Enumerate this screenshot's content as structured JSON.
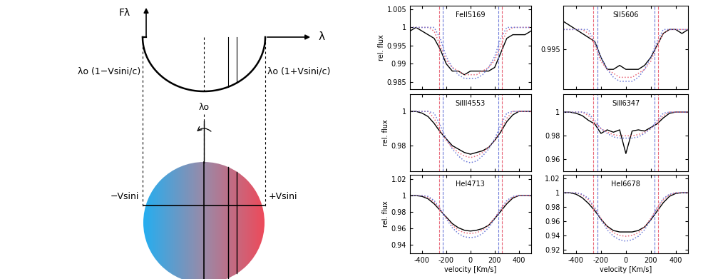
{
  "diagram": {
    "flux_label": "Fλ",
    "wavelength_label": "λ",
    "left_edge": "λo (1−Vsini/c)",
    "right_edge": "λo (1+Vsini/c)",
    "center": "λo",
    "left_velocity": "−Vsini",
    "right_velocity": "+Vsini"
  },
  "chart_data": [
    {
      "type": "line",
      "title": "FeII5169",
      "y_label": "rel. flux",
      "tick_labels": "y",
      "xlim": [
        -500,
        500
      ],
      "xticks": [
        -400,
        -200,
        0,
        200,
        400
      ],
      "ylim": [
        0.983,
        1.006
      ],
      "yticks": [
        0.985,
        0.99,
        0.995,
        1,
        1.005
      ],
      "x": [
        -500,
        -450,
        -400,
        -350,
        -300,
        -250,
        -200,
        -150,
        -100,
        -50,
        0,
        50,
        100,
        150,
        200,
        250,
        300,
        350,
        400,
        450,
        500
      ],
      "series": [
        {
          "color": "#000000",
          "line_style": "solid",
          "values": [
            0.999,
            1.0,
            0.999,
            0.998,
            0.997,
            0.994,
            0.99,
            0.988,
            0.988,
            0.987,
            0.988,
            0.988,
            0.988,
            0.988,
            0.989,
            0.993,
            0.997,
            0.998,
            0.998,
            0.998,
            0.999
          ]
        },
        {
          "color": "#e8687a",
          "line_style": "dotted",
          "values": [
            1.0,
            1.0,
            1.0,
            1.0,
            0.999,
            0.995,
            0.991,
            0.989,
            0.988,
            0.987,
            0.987,
            0.987,
            0.988,
            0.989,
            0.991,
            0.995,
            0.999,
            1.0,
            1.0,
            1.0,
            1.0
          ]
        },
        {
          "color": "#6a78d8",
          "line_style": "dotted",
          "values": [
            1.0,
            1.0,
            1.0,
            1.0,
            1.0,
            0.997,
            0.992,
            0.989,
            0.987,
            0.986,
            0.986,
            0.986,
            0.987,
            0.989,
            0.992,
            0.997,
            1.0,
            1.0,
            1.0,
            1.0,
            1.0
          ]
        }
      ],
      "vlines": [
        {
          "color": "#e8687a",
          "line_style": "dashed",
          "values": [
            -260,
            260
          ]
        },
        {
          "color": "#6a78d8",
          "line_style": "dashed",
          "values": [
            -230,
            230
          ]
        }
      ]
    },
    {
      "type": "line",
      "title": "SII5606",
      "tick_labels": "y",
      "xlim": [
        -500,
        500
      ],
      "xticks": [
        -400,
        -200,
        0,
        200,
        400
      ],
      "ylim": [
        0.985,
        1.006
      ],
      "yticks": [
        0.995
      ],
      "x": [
        -500,
        -450,
        -400,
        -350,
        -300,
        -250,
        -200,
        -150,
        -100,
        -50,
        0,
        50,
        100,
        150,
        200,
        250,
        300,
        350,
        400,
        450,
        500
      ],
      "series": [
        {
          "color": "#000000",
          "line_style": "solid",
          "values": [
            1.002,
            1.001,
            1.0,
            0.999,
            0.998,
            0.997,
            0.993,
            0.99,
            0.99,
            0.991,
            0.99,
            0.99,
            0.99,
            0.991,
            0.993,
            0.996,
            0.999,
            1.0,
            1.0,
            0.999,
            1.0
          ]
        },
        {
          "color": "#e8687a",
          "line_style": "dotted",
          "values": [
            1.0,
            1.0,
            1.0,
            1.0,
            0.999,
            0.996,
            0.992,
            0.99,
            0.989,
            0.988,
            0.988,
            0.988,
            0.989,
            0.99,
            0.992,
            0.996,
            0.999,
            1.0,
            1.0,
            1.0,
            1.0
          ]
        },
        {
          "color": "#6a78d8",
          "line_style": "dotted",
          "values": [
            1.0,
            1.0,
            1.0,
            1.0,
            1.0,
            0.997,
            0.993,
            0.99,
            0.988,
            0.987,
            0.987,
            0.987,
            0.988,
            0.99,
            0.993,
            0.997,
            1.0,
            1.0,
            1.0,
            1.0,
            1.0
          ]
        }
      ],
      "vlines": [
        {
          "color": "#e8687a",
          "line_style": "dashed",
          "values": [
            -260,
            260
          ]
        },
        {
          "color": "#6a78d8",
          "line_style": "dashed",
          "values": [
            -230,
            230
          ]
        }
      ]
    },
    {
      "type": "line",
      "title": "SiIII4553",
      "y_label": "rel. flux",
      "tick_labels": "y",
      "xlim": [
        -500,
        500
      ],
      "xticks": [
        -400,
        -200,
        0,
        200,
        400
      ],
      "ylim": [
        0.965,
        1.01
      ],
      "yticks": [
        0.98,
        1
      ],
      "x": [
        -500,
        -450,
        -400,
        -350,
        -300,
        -250,
        -200,
        -150,
        -100,
        -50,
        0,
        50,
        100,
        150,
        200,
        250,
        300,
        350,
        400,
        450,
        500
      ],
      "series": [
        {
          "color": "#000000",
          "line_style": "solid",
          "values": [
            1.0,
            1.0,
            0.999,
            0.997,
            0.993,
            0.988,
            0.984,
            0.98,
            0.978,
            0.976,
            0.975,
            0.976,
            0.977,
            0.979,
            0.983,
            0.988,
            0.994,
            0.998,
            1.0,
            1.0,
            1.0
          ]
        },
        {
          "color": "#e8687a",
          "line_style": "dotted",
          "values": [
            1.0,
            1.0,
            1.0,
            1.0,
            0.996,
            0.989,
            0.983,
            0.979,
            0.976,
            0.974,
            0.973,
            0.974,
            0.976,
            0.979,
            0.983,
            0.989,
            0.996,
            1.0,
            1.0,
            1.0,
            1.0
          ]
        },
        {
          "color": "#6a78d8",
          "line_style": "dotted",
          "values": [
            1.0,
            1.0,
            1.0,
            1.0,
            0.999,
            0.992,
            0.984,
            0.978,
            0.974,
            0.971,
            0.97,
            0.971,
            0.974,
            0.978,
            0.984,
            0.992,
            0.999,
            1.0,
            1.0,
            1.0,
            1.0
          ]
        }
      ],
      "vlines": [
        {
          "color": "#e8687a",
          "line_style": "dashed",
          "values": [
            -260,
            260
          ]
        },
        {
          "color": "#6a78d8",
          "line_style": "dashed",
          "values": [
            -230,
            230
          ]
        }
      ]
    },
    {
      "type": "line",
      "title": "SiII6347",
      "tick_labels": "y",
      "xlim": [
        -500,
        500
      ],
      "xticks": [
        -400,
        -200,
        0,
        200,
        400
      ],
      "ylim": [
        0.95,
        1.015
      ],
      "yticks": [
        0.96,
        0.98,
        1
      ],
      "x": [
        -500,
        -450,
        -400,
        -350,
        -300,
        -250,
        -200,
        -150,
        -100,
        -50,
        0,
        50,
        100,
        150,
        200,
        250,
        300,
        350,
        400,
        450,
        500
      ],
      "series": [
        {
          "color": "#000000",
          "line_style": "solid",
          "values": [
            1.0,
            1.0,
            0.999,
            0.997,
            0.993,
            0.99,
            0.982,
            0.985,
            0.983,
            0.985,
            0.965,
            0.984,
            0.985,
            0.984,
            0.987,
            0.99,
            0.995,
            0.999,
            1.0,
            1.0,
            1.0
          ]
        },
        {
          "color": "#e8687a",
          "line_style": "dotted",
          "values": [
            1.0,
            1.0,
            1.0,
            1.0,
            0.997,
            0.991,
            0.986,
            0.983,
            0.981,
            0.98,
            0.98,
            0.98,
            0.981,
            0.983,
            0.986,
            0.991,
            0.997,
            1.0,
            1.0,
            1.0,
            1.0
          ]
        },
        {
          "color": "#6a78d8",
          "line_style": "dotted",
          "values": [
            1.0,
            1.0,
            1.0,
            1.0,
            0.999,
            0.993,
            0.986,
            0.982,
            0.979,
            0.978,
            0.978,
            0.978,
            0.979,
            0.982,
            0.986,
            0.993,
            0.999,
            1.0,
            1.0,
            1.0,
            1.0
          ]
        }
      ],
      "vlines": [
        {
          "color": "#e8687a",
          "line_style": "dashed",
          "values": [
            -260,
            260
          ]
        },
        {
          "color": "#6a78d8",
          "line_style": "dashed",
          "values": [
            -230,
            230
          ]
        }
      ]
    },
    {
      "type": "line",
      "title": "HeI4713",
      "y_label": "rel. flux",
      "x_label": "velocity [Km/s]",
      "xlim": [
        -500,
        500
      ],
      "xticks": [
        -400,
        -200,
        0,
        200,
        400
      ],
      "ylim": [
        0.93,
        1.025
      ],
      "yticks": [
        0.94,
        0.96,
        0.98,
        1,
        1.02
      ],
      "x": [
        -500,
        -450,
        -400,
        -350,
        -300,
        -250,
        -200,
        -150,
        -100,
        -50,
        0,
        50,
        100,
        150,
        200,
        250,
        300,
        350,
        400,
        450,
        500
      ],
      "series": [
        {
          "color": "#000000",
          "line_style": "solid",
          "values": [
            1.0,
            1.0,
            0.999,
            0.996,
            0.99,
            0.982,
            0.974,
            0.966,
            0.961,
            0.958,
            0.957,
            0.958,
            0.96,
            0.964,
            0.972,
            0.981,
            0.99,
            0.997,
            1.0,
            1.0,
            1.0
          ]
        },
        {
          "color": "#e8687a",
          "line_style": "dotted",
          "values": [
            1.0,
            1.0,
            1.0,
            0.998,
            0.992,
            0.983,
            0.973,
            0.964,
            0.958,
            0.955,
            0.954,
            0.955,
            0.958,
            0.964,
            0.973,
            0.983,
            0.992,
            0.998,
            1.0,
            1.0,
            1.0
          ]
        },
        {
          "color": "#6a78d8",
          "line_style": "dotted",
          "values": [
            1.0,
            1.0,
            1.0,
            0.999,
            0.994,
            0.984,
            0.972,
            0.961,
            0.954,
            0.95,
            0.949,
            0.95,
            0.954,
            0.961,
            0.972,
            0.984,
            0.994,
            0.999,
            1.0,
            1.0,
            1.0
          ]
        }
      ],
      "vlines": [
        {
          "color": "#e8687a",
          "line_style": "dashed",
          "values": [
            -260,
            260
          ]
        },
        {
          "color": "#6a78d8",
          "line_style": "dashed",
          "values": [
            -230,
            230
          ]
        }
      ]
    },
    {
      "type": "line",
      "title": "HeI6678",
      "x_label": "velocity [Km/s]",
      "xlim": [
        -500,
        500
      ],
      "xticks": [
        -400,
        -200,
        0,
        200,
        400
      ],
      "ylim": [
        0.915,
        1.025
      ],
      "yticks": [
        0.92,
        0.94,
        0.96,
        0.98,
        1,
        1.02
      ],
      "x": [
        -500,
        -450,
        -400,
        -350,
        -300,
        -250,
        -200,
        -150,
        -100,
        -50,
        0,
        50,
        100,
        150,
        200,
        250,
        300,
        350,
        400,
        450,
        500
      ],
      "series": [
        {
          "color": "#000000",
          "line_style": "solid",
          "values": [
            1.0,
            1.0,
            0.998,
            0.993,
            0.985,
            0.975,
            0.963,
            0.953,
            0.947,
            0.945,
            0.945,
            0.945,
            0.947,
            0.952,
            0.962,
            0.974,
            0.986,
            0.995,
            0.999,
            1.0,
            1.0
          ]
        },
        {
          "color": "#e8687a",
          "line_style": "dotted",
          "values": [
            1.0,
            1.0,
            1.0,
            0.997,
            0.99,
            0.978,
            0.964,
            0.952,
            0.944,
            0.94,
            0.939,
            0.94,
            0.944,
            0.952,
            0.964,
            0.978,
            0.99,
            0.997,
            1.0,
            1.0,
            1.0
          ]
        },
        {
          "color": "#6a78d8",
          "line_style": "dotted",
          "values": [
            1.0,
            1.0,
            1.0,
            0.998,
            0.992,
            0.979,
            0.962,
            0.948,
            0.939,
            0.934,
            0.932,
            0.934,
            0.939,
            0.948,
            0.962,
            0.979,
            0.992,
            0.998,
            1.0,
            1.0,
            1.0
          ]
        }
      ],
      "vlines": [
        {
          "color": "#e8687a",
          "line_style": "dashed",
          "values": [
            -260,
            260
          ]
        },
        {
          "color": "#6a78d8",
          "line_style": "dashed",
          "values": [
            -230,
            230
          ]
        }
      ]
    }
  ]
}
